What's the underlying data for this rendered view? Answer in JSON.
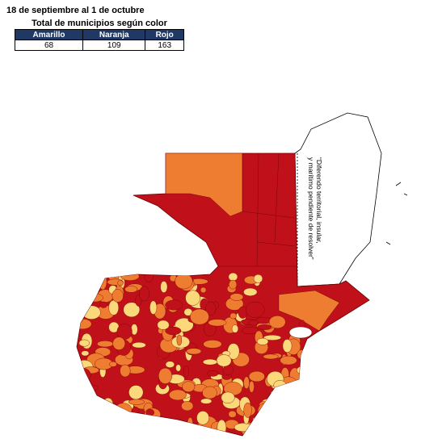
{
  "header": {
    "title": "18 de septiembre al 1 de octubre",
    "subtitle": "Total de municipios según color"
  },
  "table": {
    "columns": [
      "Amarillo",
      "Naranja",
      "Rojo"
    ],
    "rows": [
      [
        68,
        109,
        163
      ]
    ]
  },
  "map": {
    "annotation": [
      "“Diferendo territorial, insular,",
      "y marítimo pendiente de resolver”"
    ]
  }
}
